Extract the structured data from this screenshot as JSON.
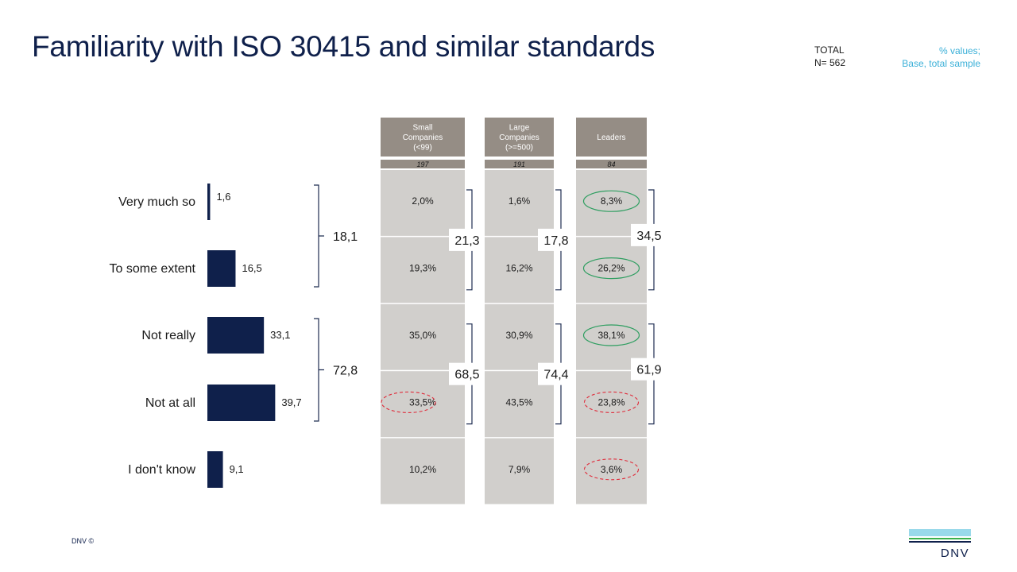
{
  "header": {
    "title": "Familiarity with ISO 30415 and similar standards",
    "total_label": "TOTAL",
    "total_n": "N= 562",
    "note_line1": "% values;",
    "note_line2": "Base, total sample"
  },
  "footer": {
    "copyright": "DNV ©",
    "logo_text": "DNV"
  },
  "colors": {
    "bar": "#0f204b",
    "header_box": "#958d85",
    "column_bg": "#d1cfcc",
    "highlight_good": "#2e9e60",
    "highlight_bad": "#e02b3a",
    "note": "#3bb0d8"
  },
  "chart_data": {
    "type": "bar",
    "orientation": "horizontal",
    "categories": [
      "Very much so",
      "To some extent",
      "Not really",
      "Not at all",
      "I don't know"
    ],
    "values": [
      1.6,
      16.5,
      33.1,
      39.7,
      9.1
    ],
    "value_labels": [
      "1,6",
      "16,5",
      "33,1",
      "39,7",
      "9,1"
    ],
    "bracket_totals": [
      {
        "label": "18,1",
        "value": 18.1,
        "from": 0,
        "to": 1
      },
      {
        "label": "72,8",
        "value": 72.8,
        "from": 2,
        "to": 3
      }
    ],
    "segments": [
      {
        "name_lines": [
          "Small",
          "Companies",
          "(<99)"
        ],
        "base_n": "197",
        "values": [
          2.0,
          19.3,
          35.0,
          33.5,
          10.2
        ],
        "labels": [
          "2,0%",
          "19,3%",
          "35,0%",
          "33,5%",
          "10,2%"
        ],
        "highlights": [
          "none",
          "none",
          "none",
          "low",
          "none"
        ],
        "bracket_totals": [
          "21,3",
          "68,5"
        ]
      },
      {
        "name_lines": [
          "Large",
          "Companies",
          "(>=500)"
        ],
        "base_n": "191",
        "values": [
          1.6,
          16.2,
          30.9,
          43.5,
          7.9
        ],
        "labels": [
          "1,6%",
          "16,2%",
          "30,9%",
          "43,5%",
          "7,9%"
        ],
        "highlights": [
          "none",
          "none",
          "none",
          "none",
          "none"
        ],
        "bracket_totals": [
          "17,8",
          "74,4"
        ]
      },
      {
        "name_lines": [
          "Leaders"
        ],
        "base_n": "84",
        "values": [
          8.3,
          26.2,
          38.1,
          23.8,
          3.6
        ],
        "labels": [
          "8,3%",
          "26,2%",
          "38,1%",
          "23,8%",
          "3,6%"
        ],
        "highlights": [
          "high",
          "high",
          "high",
          "low",
          "low"
        ],
        "bracket_totals": [
          "34,5",
          "61,9"
        ]
      }
    ]
  }
}
